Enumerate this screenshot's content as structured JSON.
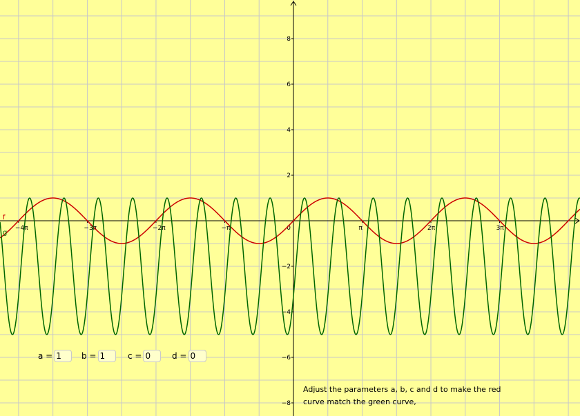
{
  "chart_data": {
    "type": "line",
    "title": "",
    "xlabel": "",
    "ylabel": "",
    "xlim": [
      -13.3,
      13.1
    ],
    "ylim": [
      -8.5,
      9.7
    ],
    "x_ticks": [
      {
        "value": -12.566,
        "label": "−4π"
      },
      {
        "value": -9.425,
        "label": "−3π"
      },
      {
        "value": -6.283,
        "label": "−2π"
      },
      {
        "value": -3.1416,
        "label": "−π"
      },
      {
        "value": 3.1416,
        "label": "π"
      },
      {
        "value": 6.283,
        "label": "2π"
      },
      {
        "value": 9.425,
        "label": "3π"
      }
    ],
    "y_ticks": [
      {
        "value": 8,
        "label": "8"
      },
      {
        "value": 6,
        "label": "6"
      },
      {
        "value": 4,
        "label": "4"
      },
      {
        "value": 2,
        "label": "2"
      },
      {
        "value": -2,
        "label": "−2"
      },
      {
        "value": -4,
        "label": "−4"
      },
      {
        "value": -6,
        "label": "−6"
      },
      {
        "value": -8,
        "label": "−8"
      }
    ],
    "origin_label": "0",
    "grid": true,
    "series": [
      {
        "name": "f",
        "color": "#cc0000",
        "amplitude": 1,
        "frequency": 1,
        "phase": 0,
        "offset": 0
      },
      {
        "name": "g",
        "color": "#006600",
        "amplitude": 3,
        "frequency": 4,
        "phase": -0.45,
        "offset": -2
      }
    ]
  },
  "controls": [
    {
      "label": "a =",
      "value": "1"
    },
    {
      "label": "b =",
      "value": "1"
    },
    {
      "label": "c =",
      "value": "0"
    },
    {
      "label": "d =",
      "value": "0"
    }
  ],
  "instructions": "Adjust the parameters a, b, c and d to make the red curve match the green curve,",
  "colors": {
    "background": "#ffff99",
    "grid": "#c8c8c8",
    "axis": "#000000"
  }
}
